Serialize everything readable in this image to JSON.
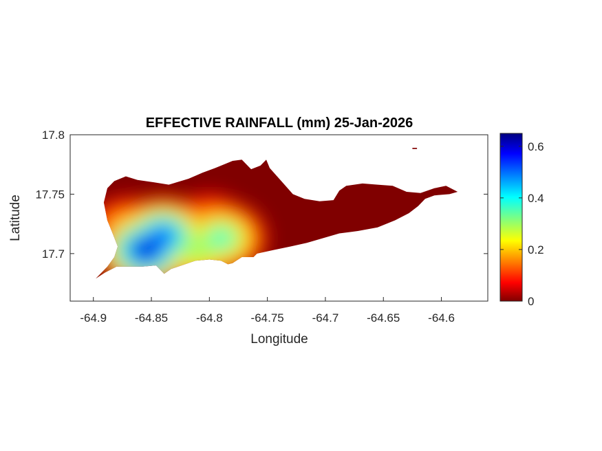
{
  "chart_data": {
    "type": "heatmap",
    "title": "EFFECTIVE RAINFALL (mm) 25-Jan-2026",
    "xlabel": "Longitude",
    "ylabel": "Latitude",
    "xlim": [
      -64.92,
      -64.56
    ],
    "ylim": [
      17.66,
      17.8
    ],
    "xticks": [
      -64.9,
      -64.85,
      -64.8,
      -64.75,
      -64.7,
      -64.65,
      -64.6
    ],
    "xtick_labels": [
      "-64.9",
      "-64.85",
      "-64.8",
      "-64.75",
      "-64.7",
      "-64.65",
      "-64.6"
    ],
    "yticks": [
      17.7,
      17.75,
      17.8
    ],
    "ytick_labels": [
      "17.7",
      "17.75",
      "17.8"
    ],
    "colorbar": {
      "colormap": "jet",
      "min": 0,
      "max": 0.65,
      "ticks": [
        0,
        0.2,
        0.4,
        0.6
      ],
      "tick_labels": [
        "0",
        "0.2",
        "0.4",
        "0.6"
      ]
    },
    "field_peaks": [
      {
        "lon": -64.855,
        "lat": 17.703,
        "value": 0.64
      },
      {
        "lon": -64.84,
        "lat": 17.715,
        "value": 0.55
      },
      {
        "lon": -64.81,
        "lat": 17.703,
        "value": 0.32
      },
      {
        "lon": -64.79,
        "lat": 17.713,
        "value": 0.38
      },
      {
        "lon": -64.8,
        "lat": 17.725,
        "value": 0.17
      },
      {
        "lon": -64.87,
        "lat": 17.72,
        "value": 0.22
      }
    ],
    "island_outline": [
      [
        -64.898,
        17.679
      ],
      [
        -64.888,
        17.689
      ],
      [
        -64.882,
        17.697
      ],
      [
        -64.879,
        17.706
      ],
      [
        -64.883,
        17.716
      ],
      [
        -64.888,
        17.728
      ],
      [
        -64.891,
        17.743
      ],
      [
        -64.888,
        17.755
      ],
      [
        -64.882,
        17.761
      ],
      [
        -64.872,
        17.765
      ],
      [
        -64.862,
        17.762
      ],
      [
        -64.848,
        17.76
      ],
      [
        -64.835,
        17.758
      ],
      [
        -64.818,
        17.763
      ],
      [
        -64.806,
        17.768
      ],
      [
        -64.795,
        17.772
      ],
      [
        -64.78,
        17.778
      ],
      [
        -64.772,
        17.779
      ],
      [
        -64.764,
        17.771
      ],
      [
        -64.756,
        17.774
      ],
      [
        -64.751,
        17.779
      ],
      [
        -64.748,
        17.772
      ],
      [
        -64.738,
        17.761
      ],
      [
        -64.728,
        17.75
      ],
      [
        -64.718,
        17.746
      ],
      [
        -64.705,
        17.744
      ],
      [
        -64.693,
        17.745
      ],
      [
        -64.688,
        17.753
      ],
      [
        -64.682,
        17.757
      ],
      [
        -64.668,
        17.759
      ],
      [
        -64.655,
        17.758
      ],
      [
        -64.642,
        17.757
      ],
      [
        -64.63,
        17.752
      ],
      [
        -64.618,
        17.751
      ],
      [
        -64.606,
        17.755
      ],
      [
        -64.596,
        17.757
      ],
      [
        -64.586,
        17.752
      ],
      [
        -64.593,
        17.75
      ],
      [
        -64.606,
        17.749
      ],
      [
        -64.614,
        17.746
      ],
      [
        -64.62,
        17.74
      ],
      [
        -64.628,
        17.734
      ],
      [
        -64.64,
        17.728
      ],
      [
        -64.655,
        17.722
      ],
      [
        -64.672,
        17.719
      ],
      [
        -64.688,
        17.717
      ],
      [
        -64.702,
        17.713
      ],
      [
        -64.716,
        17.709
      ],
      [
        -64.73,
        17.706
      ],
      [
        -64.745,
        17.703
      ],
      [
        -64.759,
        17.7
      ],
      [
        -64.762,
        17.697
      ],
      [
        -64.772,
        17.697
      ],
      [
        -64.78,
        17.692
      ],
      [
        -64.784,
        17.691
      ],
      [
        -64.79,
        17.694
      ],
      [
        -64.8,
        17.695
      ],
      [
        -64.812,
        17.694
      ],
      [
        -64.824,
        17.69
      ],
      [
        -64.833,
        17.687
      ],
      [
        -64.839,
        17.683
      ],
      [
        -64.846,
        17.69
      ],
      [
        -64.858,
        17.689
      ],
      [
        -64.87,
        17.689
      ],
      [
        -64.88,
        17.689
      ],
      [
        -64.89,
        17.684
      ]
    ],
    "islet_outline": [
      [
        -64.625,
        17.789
      ],
      [
        -64.621,
        17.789
      ],
      [
        -64.621,
        17.788
      ],
      [
        -64.625,
        17.788
      ]
    ],
    "grid": false
  }
}
